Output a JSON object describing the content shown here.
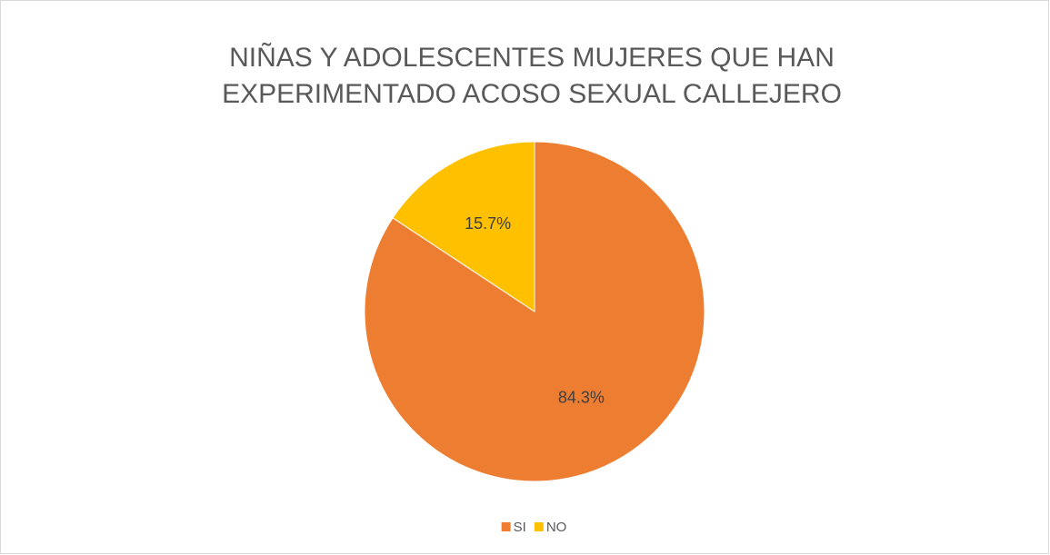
{
  "chart_data": {
    "type": "pie",
    "title": "NIÑAS Y ADOLESCENTES MUJERES QUE HAN EXPERIMENTADO ACOSO SEXUAL CALLEJERO",
    "categories": [
      "SI",
      "NO"
    ],
    "values": [
      84.3,
      15.7
    ],
    "value_labels": [
      "84.3%",
      "15.7%"
    ],
    "colors": [
      "#ed7d31",
      "#ffc000"
    ],
    "legend": "bottom"
  }
}
